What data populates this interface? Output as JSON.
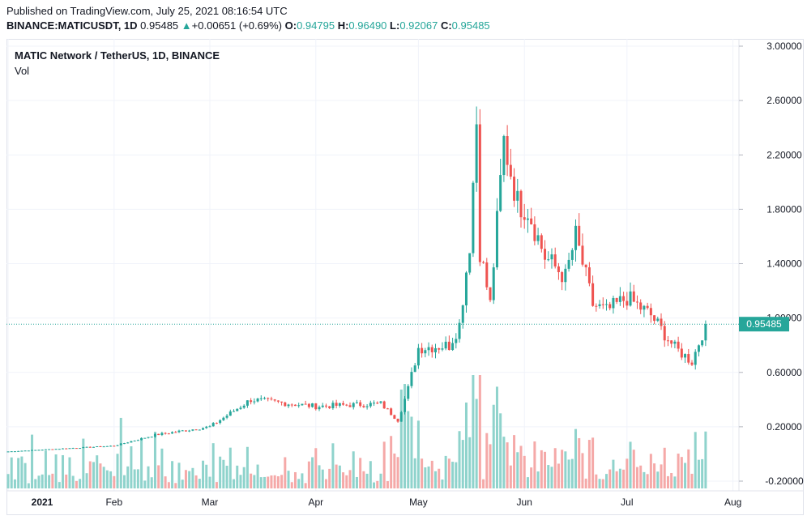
{
  "header": {
    "published": "Published on TradingView.com, July 25, 2021 08:16:54 UTC",
    "symbol": "BINANCE:MATICUSDT, 1D",
    "last": "0.95485",
    "change": "+0.00651 (+0.69%)",
    "o_label": "O:",
    "o_value": "0.94795",
    "h_label": "H:",
    "h_value": "0.96490",
    "l_label": "L:",
    "l_value": "0.92067",
    "c_label": "C:",
    "c_value": "0.95485"
  },
  "legend": {
    "title": "MATIC Network / TetherUS, 1D, BINANCE",
    "vol": "Vol"
  },
  "colors": {
    "up": "#26a69a",
    "down": "#ef5350",
    "up_vol": "#8fd3cc",
    "down_vol": "#f5a9a8",
    "grid": "#f0f3fa"
  },
  "chart_data": {
    "type": "candlestick",
    "y_ticks": [
      "3.00000",
      "2.60000",
      "2.20000",
      "1.80000",
      "1.40000",
      "1.00000",
      "0.60000",
      "0.20000",
      "-0.20000"
    ],
    "x_ticks": [
      "2021",
      "Feb",
      "Mar",
      "Apr",
      "May",
      "Jun",
      "Jul",
      "Aug"
    ],
    "ylim": [
      -0.2,
      3.0
    ],
    "last_price_label": "0.95485",
    "key_points": [
      {
        "date": "2021-01-01",
        "close": 0.018
      },
      {
        "date": "2021-02-01",
        "close": 0.06
      },
      {
        "date": "2021-02-13",
        "close": 0.14
      },
      {
        "date": "2021-03-01",
        "close": 0.2
      },
      {
        "date": "2021-03-13",
        "close": 0.4
      },
      {
        "date": "2021-04-01",
        "close": 0.35
      },
      {
        "date": "2021-04-20",
        "close": 0.37
      },
      {
        "date": "2021-04-25",
        "close": 0.25
      },
      {
        "date": "2021-04-28",
        "close": 0.48
      },
      {
        "date": "2021-05-01",
        "close": 0.78
      },
      {
        "date": "2021-05-10",
        "close": 0.8
      },
      {
        "date": "2021-05-13",
        "close": 0.95
      },
      {
        "date": "2021-05-16",
        "close": 1.55
      },
      {
        "date": "2021-05-18",
        "close": 2.45
      },
      {
        "date": "2021-05-19",
        "close": 1.5
      },
      {
        "date": "2021-05-22",
        "close": 1.1
      },
      {
        "date": "2021-05-26",
        "close": 2.3
      },
      {
        "date": "2021-05-30",
        "close": 1.85
      },
      {
        "date": "2021-06-02",
        "close": 1.8
      },
      {
        "date": "2021-06-07",
        "close": 1.45
      },
      {
        "date": "2021-06-13",
        "close": 1.3
      },
      {
        "date": "2021-06-16",
        "close": 1.6
      },
      {
        "date": "2021-06-21",
        "close": 1.1
      },
      {
        "date": "2021-06-25",
        "close": 1.05
      },
      {
        "date": "2021-07-01",
        "close": 1.15
      },
      {
        "date": "2021-07-08",
        "close": 1.02
      },
      {
        "date": "2021-07-15",
        "close": 0.78
      },
      {
        "date": "2021-07-20",
        "close": 0.68
      },
      {
        "date": "2021-07-24",
        "close": 0.95485
      }
    ]
  }
}
